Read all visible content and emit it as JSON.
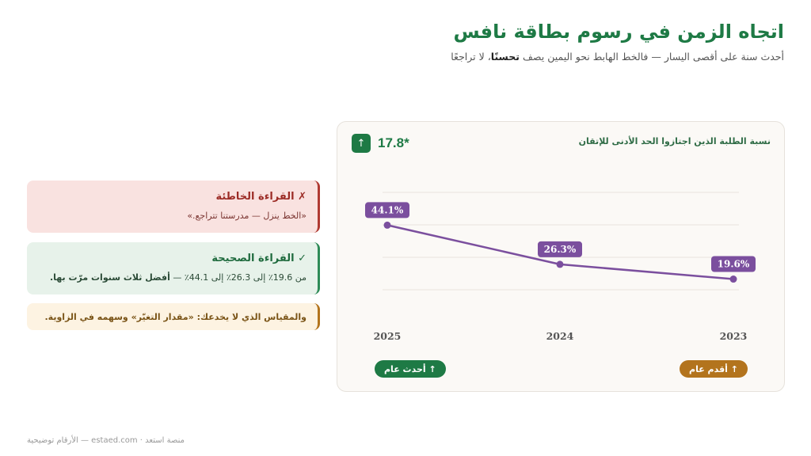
{
  "header": {
    "title": "اتجاه الزمن في رسوم بطاقة نافس",
    "subtitle_prefix": "أحدث سنة على أقصى اليسار — فالخط الهابط نحو اليمين يصف ",
    "subtitle_emphasis": "تحسنًا",
    "subtitle_suffix": "، لا تراجعًا"
  },
  "card": {
    "caption": "نسبة الطلبة الذين اجتازوا الحد الأدنى للإتقان",
    "delta_icon": "arrow-up-icon",
    "delta_value": "17.8*",
    "newest_label": "↑ أحدث عام",
    "oldest_label": "↑ أقدم عام"
  },
  "chart_data": {
    "type": "line",
    "x": [
      "2025",
      "2024",
      "2023"
    ],
    "values": [
      44.1,
      26.3,
      19.6
    ],
    "value_labels": [
      "44.1%",
      "26.3%",
      "19.6%"
    ],
    "x_order": "reversed (newest on the left)",
    "grid": true,
    "color": "#7b4f9e"
  },
  "notes": {
    "wrong": {
      "title": "✗ القراءة الخاطئة",
      "text": "«الخط ينزل — مدرستنا تتراجع.»"
    },
    "right": {
      "title": "✓ القراءة الصحيحة",
      "text_prefix": "من 19.6٪ إلى 26.3٪ إلى 44.1٪ — ",
      "text_emphasis": "أفضل ثلاث سنوات مرّت بها."
    },
    "tip": {
      "text": "والمقياس الذي لا يخدعك: «مقدار التغيّر» وسهمه في الزاوية."
    }
  },
  "footer": {
    "text": "منصة استعد · estaed.com — الأرقام توضيحية"
  },
  "colors": {
    "green": "#1e7a45",
    "purple": "#7b4f9e",
    "amber": "#b3741d",
    "red": "#b03a32"
  }
}
